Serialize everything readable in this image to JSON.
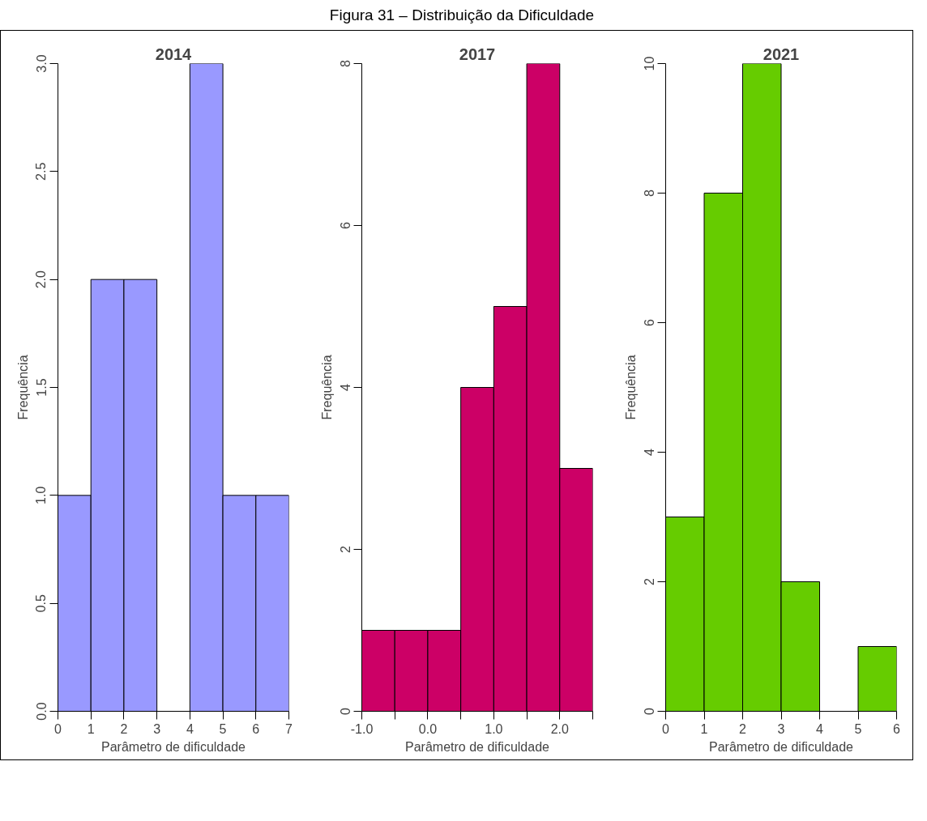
{
  "chart_data": [
    {
      "type": "histogram",
      "title": "2014",
      "xlabel": "Parâmetro de dificuldade",
      "ylabel": "Frequência",
      "annotations": [
        "Figura 31 – Distribuição da Dificuldade"
      ],
      "color": "#9999ff",
      "bins": [
        0,
        1,
        2,
        3,
        4,
        5,
        6,
        7
      ],
      "values": [
        1,
        2,
        2,
        0,
        3,
        1,
        1
      ],
      "xlim": [
        0,
        7
      ],
      "xticks": [
        0,
        1,
        2,
        3,
        4,
        5,
        6,
        7
      ],
      "ylim": [
        0,
        3
      ],
      "yticks": [
        {
          "value": 0,
          "label": "0.0"
        },
        {
          "value": 0.5,
          "label": "0.5"
        },
        {
          "value": 1,
          "label": "1.0"
        },
        {
          "value": 1.5,
          "label": "1.5"
        },
        {
          "value": 2,
          "label": "2.0"
        },
        {
          "value": 2.5,
          "label": "2.5"
        },
        {
          "value": 3,
          "label": "3.0"
        }
      ],
      "grid": false
    },
    {
      "type": "histogram",
      "title": "2017",
      "xlabel": "Parâmetro de dificuldade",
      "ylabel": "Frequência",
      "color": "#cc0066",
      "bins": [
        -1,
        -0.5,
        0,
        0.5,
        1,
        1.5,
        2,
        2.5
      ],
      "values": [
        1,
        1,
        1,
        4,
        5,
        8,
        3
      ],
      "xlim": [
        -1,
        2.5
      ],
      "xticks": [
        {
          "value": -1,
          "label": "-1.0"
        },
        {
          "value": -0.5,
          "label": null
        },
        {
          "value": 0,
          "label": "0.0"
        },
        {
          "value": 0.5,
          "label": null
        },
        {
          "value": 1,
          "label": "1.0"
        },
        {
          "value": 1.5,
          "label": null
        },
        {
          "value": 2,
          "label": "2.0"
        },
        {
          "value": 2.5,
          "label": null
        }
      ],
      "ylim": [
        0,
        8
      ],
      "yticks": [
        0,
        2,
        4,
        6,
        8
      ],
      "grid": false
    },
    {
      "type": "histogram",
      "title": "2021",
      "xlabel": "Parâmetro de dificuldade",
      "ylabel": "Frequência",
      "color": "#66cc00",
      "bins": [
        0,
        1,
        2,
        3,
        4,
        5,
        6
      ],
      "values": [
        3,
        8,
        10,
        2,
        0,
        1
      ],
      "xlim": [
        0,
        6
      ],
      "xticks": [
        0,
        1,
        2,
        3,
        4,
        5,
        6
      ],
      "ylim": [
        0,
        10
      ],
      "yticks": [
        0,
        2,
        4,
        6,
        8,
        10
      ],
      "grid": false
    }
  ]
}
